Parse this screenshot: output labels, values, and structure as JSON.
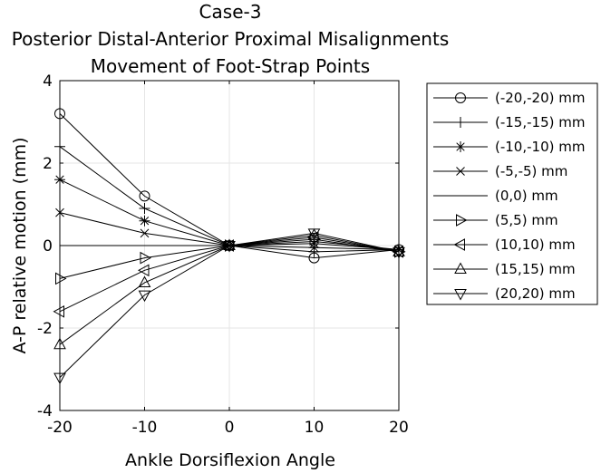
{
  "chart_data": {
    "type": "line",
    "title_lines": [
      "Case-3",
      "Posterior Distal-Anterior Proximal Misalignments",
      "Movement of Foot-Strap Points"
    ],
    "xlabel": "Ankle Dorsiflexion Angle",
    "ylabel": "A-P relative motion (mm)",
    "xlim": [
      -20,
      20
    ],
    "ylim": [
      -4,
      4
    ],
    "xticks": [
      "-20",
      "-10",
      "0",
      "10",
      "20"
    ],
    "yticks": [
      "4",
      "2",
      "0",
      "-2",
      "-4"
    ],
    "grid": true,
    "legend_position": "outside-right",
    "x": [
      -20,
      -10,
      0,
      10,
      20
    ],
    "series": [
      {
        "name": "(-20,-20) mm",
        "marker": "circle",
        "values": [
          3.2,
          1.2,
          0,
          -0.3,
          -0.1
        ]
      },
      {
        "name": "(-15,-15) mm",
        "marker": "plus",
        "values": [
          2.4,
          0.9,
          0,
          -0.15,
          -0.1
        ]
      },
      {
        "name": "(-10,-10) mm",
        "marker": "star",
        "values": [
          1.6,
          0.6,
          0,
          -0.05,
          -0.1
        ]
      },
      {
        "name": "(-5,-5) mm",
        "marker": "x",
        "values": [
          0.8,
          0.3,
          0,
          0.05,
          -0.1
        ]
      },
      {
        "name": "(0,0) mm",
        "marker": "none",
        "values": [
          0,
          0,
          0,
          0.1,
          -0.1
        ]
      },
      {
        "name": "(5,5) mm",
        "marker": "triangle-right",
        "values": [
          -0.8,
          -0.3,
          0,
          0.15,
          -0.15
        ]
      },
      {
        "name": "(10,10) mm",
        "marker": "triangle-left",
        "values": [
          -1.6,
          -0.6,
          0,
          0.2,
          -0.15
        ]
      },
      {
        "name": "(15,15) mm",
        "marker": "triangle-up",
        "values": [
          -2.4,
          -0.9,
          0,
          0.25,
          -0.15
        ]
      },
      {
        "name": "(20,20) mm",
        "marker": "triangle-down",
        "values": [
          -3.2,
          -1.2,
          0,
          0.3,
          -0.15
        ]
      }
    ]
  }
}
